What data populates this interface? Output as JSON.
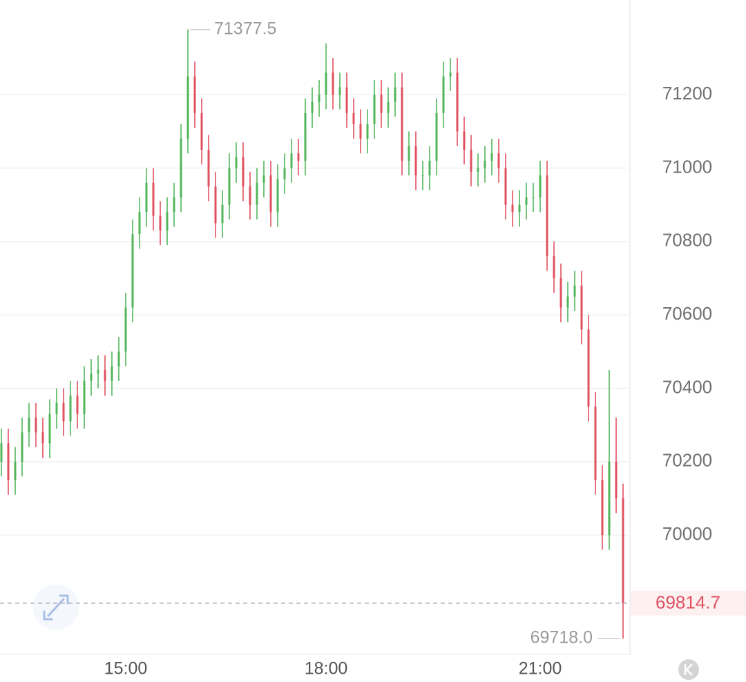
{
  "chart_data": {
    "type": "ohlc",
    "categories": [
      null,
      null,
      null,
      null,
      null,
      null,
      null,
      null,
      null,
      null,
      null,
      null,
      null,
      null,
      null,
      null,
      null,
      null,
      "15:00",
      null,
      null,
      null,
      null,
      null,
      null,
      null,
      null,
      null,
      null,
      null,
      null,
      null,
      null,
      null,
      null,
      null,
      null,
      null,
      null,
      null,
      null,
      null,
      null,
      null,
      null,
      null,
      null,
      "18:00",
      null,
      null,
      null,
      null,
      null,
      null,
      null,
      null,
      null,
      null,
      null,
      null,
      null,
      null,
      null,
      null,
      null,
      null,
      null,
      null,
      null,
      null,
      null,
      null,
      null,
      null,
      null,
      null,
      null,
      null,
      "21:00",
      null,
      null,
      null,
      null,
      null,
      null,
      null,
      null,
      null,
      null,
      null,
      null
    ],
    "open": [
      70200,
      70250,
      70150,
      70200,
      70280,
      70320,
      70280,
      70250,
      70330,
      70360,
      70310,
      70380,
      70330,
      70420,
      70440,
      70450,
      70420,
      70460,
      70500,
      70620,
      70820,
      70880,
      70960,
      70870,
      70830,
      70880,
      70920,
      71080,
      71250,
      71150,
      71050,
      70950,
      70850,
      70900,
      71000,
      71030,
      70950,
      70900,
      70960,
      70980,
      70880,
      70970,
      71000,
      71040,
      71020,
      71150,
      71180,
      71200,
      71260,
      71200,
      71220,
      71150,
      71120,
      71080,
      71120,
      71200,
      71150,
      71180,
      71220,
      71020,
      71060,
      70980,
      70980,
      71020,
      71150,
      71250,
      71260,
      71100,
      71050,
      70990,
      71000,
      71020,
      71040,
      71000,
      70900,
      70880,
      70900,
      70920,
      70920,
      70980,
      70760,
      70700,
      70620,
      70650,
      70680,
      70560,
      70350,
      70150,
      70000,
      70200,
      70100
    ],
    "high": [
      70290,
      70290,
      70240,
      70320,
      70360,
      70360,
      70320,
      70370,
      70400,
      70400,
      70420,
      70420,
      70460,
      70480,
      70490,
      70490,
      70500,
      70540,
      70660,
      70860,
      70920,
      71000,
      71000,
      70910,
      70920,
      70960,
      71120,
      71377.5,
      71290,
      71190,
      71090,
      70990,
      70940,
      71040,
      71070,
      71070,
      70990,
      71000,
      71020,
      71020,
      71010,
      71040,
      71080,
      71080,
      71190,
      71220,
      71240,
      71340,
      71300,
      71260,
      71260,
      71190,
      71160,
      71160,
      71240,
      71240,
      71220,
      71260,
      71260,
      71100,
      71100,
      71020,
      71060,
      71190,
      71290,
      71300,
      71300,
      71140,
      71090,
      71040,
      71060,
      71080,
      71080,
      71040,
      70940,
      70940,
      70960,
      70960,
      71020,
      71020,
      70800,
      70740,
      70690,
      70720,
      70720,
      70600,
      70390,
      70190,
      70450,
      70320,
      70140
    ],
    "low": [
      70160,
      70110,
      70110,
      70160,
      70240,
      70240,
      70210,
      70210,
      70290,
      70270,
      70270,
      70290,
      70290,
      70380,
      70400,
      70380,
      70380,
      70420,
      70460,
      70580,
      70780,
      70840,
      70830,
      70790,
      70790,
      70840,
      70880,
      71040,
      71110,
      71010,
      70910,
      70810,
      70810,
      70860,
      70960,
      70910,
      70860,
      70860,
      70920,
      70840,
      70840,
      70930,
      70960,
      70980,
      70980,
      71110,
      71140,
      71160,
      71160,
      71160,
      71110,
      71080,
      71040,
      71040,
      71080,
      71110,
      71110,
      71140,
      70980,
      70980,
      70940,
      70940,
      70940,
      70980,
      71110,
      71210,
      71060,
      71010,
      70950,
      70950,
      70960,
      70980,
      70960,
      70860,
      70840,
      70840,
      70860,
      70880,
      70880,
      70720,
      70660,
      70580,
      70580,
      70610,
      70520,
      70310,
      70110,
      69960,
      69960,
      70060,
      69718
    ],
    "close": [
      70250,
      70150,
      70200,
      70280,
      70320,
      70280,
      70250,
      70330,
      70360,
      70310,
      70380,
      70330,
      70420,
      70440,
      70450,
      70420,
      70460,
      70500,
      70620,
      70820,
      70880,
      70960,
      70870,
      70830,
      70880,
      70920,
      71080,
      71250,
      71150,
      71050,
      70950,
      70850,
      70900,
      71000,
      71030,
      70950,
      70900,
      70960,
      70980,
      70880,
      70970,
      71000,
      71040,
      71020,
      71150,
      71180,
      71200,
      71260,
      71200,
      71220,
      71150,
      71120,
      71080,
      71120,
      71200,
      71150,
      71180,
      71220,
      71020,
      71060,
      70980,
      70980,
      71020,
      71150,
      71250,
      71260,
      71100,
      71050,
      70990,
      71000,
      71020,
      71040,
      71000,
      70900,
      70880,
      70900,
      70920,
      70920,
      70980,
      70760,
      70700,
      70620,
      70650,
      70680,
      70560,
      70350,
      70150,
      70000,
      70200,
      70100,
      69814.7
    ],
    "up_color": "#52b55a",
    "down_color": "#e0505f",
    "ylim": [
      69675,
      71458
    ],
    "yticks": [
      70000,
      70200,
      70400,
      70600,
      70800,
      71000,
      71200
    ],
    "grid": true,
    "annotations": [
      {
        "value": 71377.5,
        "label": "71377.5"
      },
      {
        "value": 69718,
        "label": "69718.0"
      }
    ],
    "last_price": {
      "value": 69814.7,
      "label": "69814.7"
    }
  }
}
